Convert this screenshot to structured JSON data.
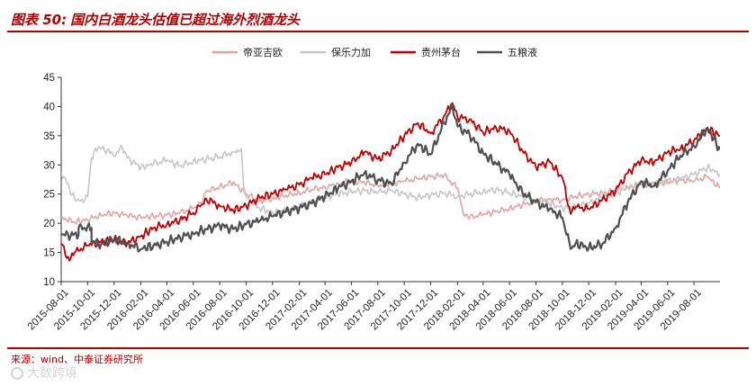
{
  "header": {
    "figure_label": "图表 50:",
    "title": "国内白酒龙头估值已超过海外烈酒龙头"
  },
  "footer": {
    "source": "来源：wind、中泰证券研究所",
    "watermark": "大数跨境"
  },
  "colors": {
    "accent": "#b00000"
  },
  "chart_data": {
    "type": "line",
    "title": "",
    "xlabel": "",
    "ylabel": "",
    "ylim": [
      10,
      45
    ],
    "yticks": [
      10,
      15,
      20,
      25,
      30,
      35,
      40,
      45
    ],
    "x_range": [
      "2015-08-01",
      "2019-09-30"
    ],
    "xticks": [
      "2015-08-01",
      "2015-10-01",
      "2015-12-01",
      "2016-02-01",
      "2016-04-01",
      "2016-06-01",
      "2016-08-01",
      "2016-10-01",
      "2016-12-01",
      "2017-02-01",
      "2017-04-01",
      "2017-06-01",
      "2017-08-01",
      "2017-10-01",
      "2017-12-01",
      "2018-02-01",
      "2018-04-01",
      "2018-06-01",
      "2018-08-01",
      "2018-10-01",
      "2018-12-01",
      "2019-02-01",
      "2019-04-01",
      "2019-06-01",
      "2019-08-01"
    ],
    "grid": false,
    "legend_position": "top",
    "series": [
      {
        "name": "帝亚吉欧",
        "color": "#e3a3a3",
        "width": 1.6,
        "points": [
          [
            "2015-08-01",
            21.0
          ],
          [
            "2015-09-01",
            20.2
          ],
          [
            "2015-10-01",
            20.6
          ],
          [
            "2015-11-01",
            21.4
          ],
          [
            "2015-12-01",
            21.8
          ],
          [
            "2016-01-01",
            21.3
          ],
          [
            "2016-02-01",
            21.0
          ],
          [
            "2016-03-01",
            21.2
          ],
          [
            "2016-04-01",
            21.4
          ],
          [
            "2016-05-01",
            21.8
          ],
          [
            "2016-06-01",
            22.6
          ],
          [
            "2016-06-20",
            23.4
          ],
          [
            "2016-07-01",
            25.5
          ],
          [
            "2016-08-01",
            26.2
          ],
          [
            "2016-09-01",
            27.0
          ],
          [
            "2016-10-01",
            25.0
          ],
          [
            "2016-11-01",
            23.8
          ],
          [
            "2016-12-01",
            24.2
          ],
          [
            "2017-01-01",
            24.8
          ],
          [
            "2017-02-01",
            25.2
          ],
          [
            "2017-03-01",
            25.8
          ],
          [
            "2017-04-01",
            26.2
          ],
          [
            "2017-05-01",
            26.8
          ],
          [
            "2017-06-01",
            27.2
          ],
          [
            "2017-07-01",
            27.0
          ],
          [
            "2017-08-01",
            26.5
          ],
          [
            "2017-09-01",
            26.8
          ],
          [
            "2017-10-01",
            27.2
          ],
          [
            "2017-11-01",
            27.6
          ],
          [
            "2017-12-01",
            28.0
          ],
          [
            "2018-01-01",
            28.2
          ],
          [
            "2018-02-01",
            26.0
          ],
          [
            "2018-02-15",
            21.5
          ],
          [
            "2018-03-01",
            21.0
          ],
          [
            "2018-04-01",
            21.5
          ],
          [
            "2018-05-01",
            22.0
          ],
          [
            "2018-06-01",
            22.5
          ],
          [
            "2018-07-01",
            23.2
          ],
          [
            "2018-08-01",
            23.8
          ],
          [
            "2018-09-01",
            24.2
          ],
          [
            "2018-10-01",
            24.0
          ],
          [
            "2018-11-01",
            24.6
          ],
          [
            "2018-12-01",
            25.0
          ],
          [
            "2019-01-01",
            25.2
          ],
          [
            "2019-02-01",
            25.6
          ],
          [
            "2019-03-01",
            26.2
          ],
          [
            "2019-04-01",
            26.6
          ],
          [
            "2019-05-01",
            26.8
          ],
          [
            "2019-06-01",
            27.0
          ],
          [
            "2019-07-01",
            27.4
          ],
          [
            "2019-08-01",
            27.2
          ],
          [
            "2019-09-01",
            28.0
          ],
          [
            "2019-09-30",
            26.0
          ]
        ]
      },
      {
        "name": "保乐力加",
        "color": "#c6c6c6",
        "width": 1.6,
        "points": [
          [
            "2015-08-01",
            28.8
          ],
          [
            "2015-08-20",
            26.0
          ],
          [
            "2015-09-01",
            24.2
          ],
          [
            "2015-09-15",
            23.8
          ],
          [
            "2015-10-01",
            24.6
          ],
          [
            "2015-10-10",
            31.2
          ],
          [
            "2015-10-25",
            33.0
          ],
          [
            "2015-11-15",
            32.5
          ],
          [
            "2015-12-01",
            31.5
          ],
          [
            "2015-12-20",
            33.0
          ],
          [
            "2016-01-01",
            31.2
          ],
          [
            "2016-02-01",
            29.5
          ],
          [
            "2016-03-01",
            30.2
          ],
          [
            "2016-04-01",
            30.8
          ],
          [
            "2016-05-01",
            29.8
          ],
          [
            "2016-06-01",
            30.6
          ],
          [
            "2016-07-01",
            31.0
          ],
          [
            "2016-08-01",
            31.4
          ],
          [
            "2016-09-01",
            32.2
          ],
          [
            "2016-09-20",
            32.8
          ],
          [
            "2016-09-25",
            26.5
          ],
          [
            "2016-10-01",
            24.5
          ],
          [
            "2016-11-01",
            22.6
          ],
          [
            "2016-12-01",
            21.8
          ],
          [
            "2017-01-01",
            22.2
          ],
          [
            "2017-02-01",
            22.8
          ],
          [
            "2017-03-01",
            23.6
          ],
          [
            "2017-04-01",
            24.4
          ],
          [
            "2017-05-01",
            25.0
          ],
          [
            "2017-06-01",
            25.4
          ],
          [
            "2017-07-01",
            25.6
          ],
          [
            "2017-08-01",
            25.3
          ],
          [
            "2017-09-01",
            25.6
          ],
          [
            "2017-10-01",
            25.0
          ],
          [
            "2017-11-01",
            24.4
          ],
          [
            "2017-12-01",
            24.8
          ],
          [
            "2018-01-01",
            25.2
          ],
          [
            "2018-02-01",
            24.6
          ],
          [
            "2018-03-01",
            25.0
          ],
          [
            "2018-04-01",
            25.4
          ],
          [
            "2018-05-01",
            25.8
          ],
          [
            "2018-06-01",
            25.2
          ],
          [
            "2018-07-01",
            24.6
          ],
          [
            "2018-08-01",
            24.0
          ],
          [
            "2018-09-01",
            23.4
          ],
          [
            "2018-10-01",
            22.6
          ],
          [
            "2018-11-01",
            22.8
          ],
          [
            "2018-12-01",
            23.4
          ],
          [
            "2019-01-01",
            24.4
          ],
          [
            "2019-02-01",
            25.2
          ],
          [
            "2019-03-01",
            26.0
          ],
          [
            "2019-04-01",
            26.6
          ],
          [
            "2019-05-01",
            26.8
          ],
          [
            "2019-06-01",
            27.2
          ],
          [
            "2019-07-01",
            27.6
          ],
          [
            "2019-08-01",
            28.4
          ],
          [
            "2019-09-01",
            29.6
          ],
          [
            "2019-09-30",
            28.4
          ]
        ]
      },
      {
        "name": "贵州茅台",
        "color": "#c00000",
        "width": 1.8,
        "points": [
          [
            "2015-08-01",
            16.5
          ],
          [
            "2015-08-20",
            13.6
          ],
          [
            "2015-09-01",
            15.0
          ],
          [
            "2015-10-01",
            16.2
          ],
          [
            "2015-11-01",
            16.8
          ],
          [
            "2015-12-01",
            17.2
          ],
          [
            "2016-01-01",
            16.6
          ],
          [
            "2016-02-01",
            17.8
          ],
          [
            "2016-03-01",
            19.2
          ],
          [
            "2016-04-01",
            19.8
          ],
          [
            "2016-05-01",
            20.6
          ],
          [
            "2016-06-01",
            21.8
          ],
          [
            "2016-06-20",
            23.2
          ],
          [
            "2016-07-01",
            24.2
          ],
          [
            "2016-08-01",
            23.0
          ],
          [
            "2016-09-01",
            22.2
          ],
          [
            "2016-10-01",
            23.0
          ],
          [
            "2016-11-01",
            24.4
          ],
          [
            "2016-12-01",
            25.0
          ],
          [
            "2017-01-01",
            25.8
          ],
          [
            "2017-02-01",
            26.6
          ],
          [
            "2017-03-01",
            27.8
          ],
          [
            "2017-04-01",
            28.4
          ],
          [
            "2017-05-01",
            29.6
          ],
          [
            "2017-06-01",
            30.4
          ],
          [
            "2017-07-01",
            32.2
          ],
          [
            "2017-08-01",
            31.0
          ],
          [
            "2017-09-01",
            32.4
          ],
          [
            "2017-10-01",
            35.0
          ],
          [
            "2017-11-01",
            37.2
          ],
          [
            "2017-12-01",
            35.4
          ],
          [
            "2018-01-01",
            38.4
          ],
          [
            "2018-01-20",
            40.6
          ],
          [
            "2018-02-01",
            38.2
          ],
          [
            "2018-03-01",
            37.8
          ],
          [
            "2018-04-01",
            35.6
          ],
          [
            "2018-05-01",
            36.4
          ],
          [
            "2018-06-01",
            35.8
          ],
          [
            "2018-07-01",
            32.4
          ],
          [
            "2018-08-01",
            29.6
          ],
          [
            "2018-09-01",
            30.6
          ],
          [
            "2018-10-01",
            27.8
          ],
          [
            "2018-10-20",
            21.6
          ],
          [
            "2018-11-01",
            22.8
          ],
          [
            "2018-12-01",
            22.4
          ],
          [
            "2019-01-01",
            24.0
          ],
          [
            "2019-02-01",
            25.6
          ],
          [
            "2019-03-01",
            28.6
          ],
          [
            "2019-04-01",
            30.8
          ],
          [
            "2019-05-01",
            30.4
          ],
          [
            "2019-06-01",
            32.2
          ],
          [
            "2019-07-01",
            32.8
          ],
          [
            "2019-08-01",
            34.2
          ],
          [
            "2019-09-01",
            36.2
          ],
          [
            "2019-09-30",
            35.0
          ]
        ]
      },
      {
        "name": "五粮液",
        "color": "#505050",
        "width": 2.2,
        "points": [
          [
            "2015-08-01",
            18.0
          ],
          [
            "2015-09-10",
            18.0
          ],
          [
            "2015-09-10",
            19.2
          ],
          [
            "2015-10-10",
            19.2
          ],
          [
            "2015-10-10",
            16.8
          ],
          [
            "2015-11-01",
            16.4
          ],
          [
            "2015-12-01",
            17.2
          ],
          [
            "2016-01-01",
            16.6
          ],
          [
            "2016-02-01",
            15.6
          ],
          [
            "2016-03-01",
            16.2
          ],
          [
            "2016-04-01",
            16.8
          ],
          [
            "2016-05-01",
            17.6
          ],
          [
            "2016-06-01",
            18.2
          ],
          [
            "2016-07-01",
            19.0
          ],
          [
            "2016-08-01",
            19.6
          ],
          [
            "2016-09-01",
            19.0
          ],
          [
            "2016-10-01",
            19.8
          ],
          [
            "2016-11-01",
            20.4
          ],
          [
            "2016-12-01",
            21.2
          ],
          [
            "2017-01-01",
            22.0
          ],
          [
            "2017-02-01",
            22.6
          ],
          [
            "2017-03-01",
            23.4
          ],
          [
            "2017-04-01",
            24.6
          ],
          [
            "2017-05-01",
            26.0
          ],
          [
            "2017-06-01",
            27.2
          ],
          [
            "2017-07-01",
            28.6
          ],
          [
            "2017-08-01",
            27.4
          ],
          [
            "2017-09-01",
            26.8
          ],
          [
            "2017-10-01",
            30.4
          ],
          [
            "2017-11-01",
            33.6
          ],
          [
            "2017-12-01",
            31.8
          ],
          [
            "2018-01-01",
            37.2
          ],
          [
            "2018-01-20",
            40.2
          ],
          [
            "2018-02-01",
            36.6
          ],
          [
            "2018-03-01",
            35.2
          ],
          [
            "2018-04-01",
            32.0
          ],
          [
            "2018-05-01",
            30.2
          ],
          [
            "2018-06-01",
            28.4
          ],
          [
            "2018-07-01",
            25.2
          ],
          [
            "2018-08-01",
            23.6
          ],
          [
            "2018-09-01",
            22.4
          ],
          [
            "2018-10-01",
            21.0
          ],
          [
            "2018-10-20",
            15.6
          ],
          [
            "2018-11-01",
            16.6
          ],
          [
            "2018-12-01",
            15.8
          ],
          [
            "2019-01-01",
            16.4
          ],
          [
            "2019-02-01",
            19.2
          ],
          [
            "2019-03-01",
            23.6
          ],
          [
            "2019-04-01",
            27.2
          ],
          [
            "2019-05-01",
            26.4
          ],
          [
            "2019-06-01",
            29.0
          ],
          [
            "2019-07-01",
            31.6
          ],
          [
            "2019-08-01",
            33.2
          ],
          [
            "2019-09-01",
            36.4
          ],
          [
            "2019-09-30",
            32.6
          ]
        ]
      }
    ]
  }
}
